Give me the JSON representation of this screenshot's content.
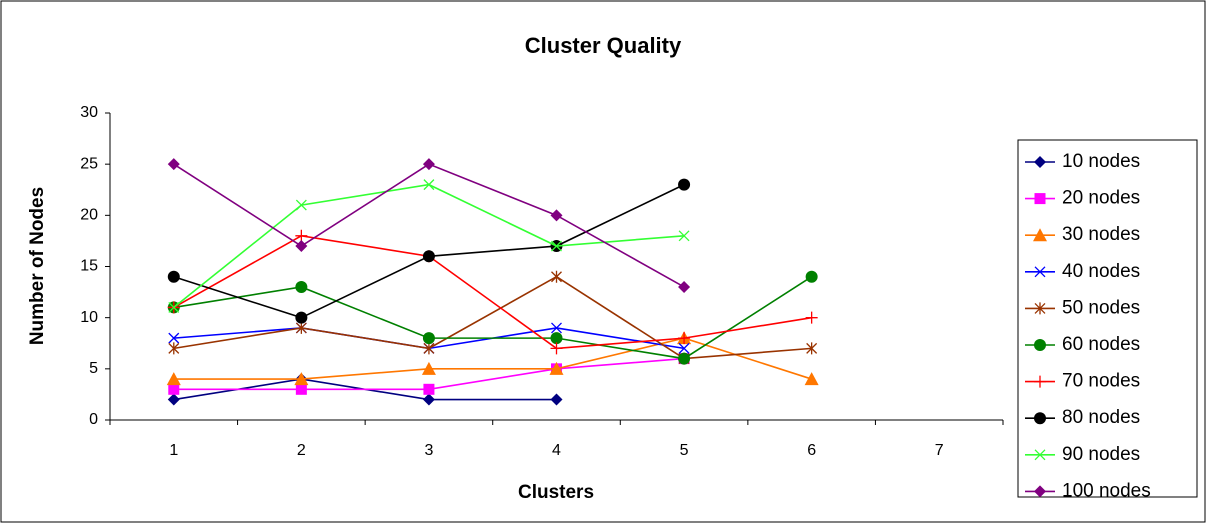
{
  "chart_data": {
    "type": "line",
    "title": "Cluster Quality",
    "x_label": "Clusters",
    "y_label": "Number of Nodes",
    "categories": [
      1,
      2,
      3,
      4,
      5,
      6,
      7
    ],
    "ylim": [
      0,
      30
    ],
    "yticks": [
      0,
      5,
      10,
      15,
      20,
      25,
      30
    ],
    "grid": false,
    "legend": "right",
    "series": [
      {
        "name": "10 nodes",
        "color": "#000080",
        "marker": "diamond",
        "values": [
          2,
          4,
          2,
          2,
          null,
          null,
          null
        ]
      },
      {
        "name": "20 nodes",
        "color": "#ff00ff",
        "marker": "square",
        "values": [
          3,
          3,
          3,
          5,
          6,
          null,
          null
        ]
      },
      {
        "name": "30 nodes",
        "color": "#ff7700",
        "marker": "triangle",
        "values": [
          4,
          4,
          5,
          5,
          8,
          4,
          null
        ]
      },
      {
        "name": "40 nodes",
        "color": "#0000ff",
        "marker": "x",
        "values": [
          8,
          9,
          7,
          9,
          7,
          null,
          null
        ]
      },
      {
        "name": "50 nodes",
        "color": "#993300",
        "marker": "star",
        "values": [
          7,
          9,
          7,
          14,
          6,
          7,
          null
        ]
      },
      {
        "name": "60 nodes",
        "color": "#008000",
        "marker": "circle",
        "values": [
          11,
          13,
          8,
          8,
          6,
          14,
          null
        ]
      },
      {
        "name": "70 nodes",
        "color": "#ff0000",
        "marker": "plus",
        "values": [
          11,
          18,
          16,
          7,
          8,
          10,
          null
        ]
      },
      {
        "name": "80 nodes",
        "color": "#000000",
        "marker": "circle",
        "values": [
          14,
          10,
          16,
          17,
          23,
          null,
          null
        ]
      },
      {
        "name": "90 nodes",
        "color": "#33ff33",
        "marker": "x",
        "values": [
          11,
          21,
          23,
          17,
          18,
          null,
          null
        ]
      },
      {
        "name": "100 nodes",
        "color": "#800080",
        "marker": "diamond",
        "values": [
          25,
          17,
          25,
          20,
          13,
          null,
          null
        ]
      }
    ]
  }
}
